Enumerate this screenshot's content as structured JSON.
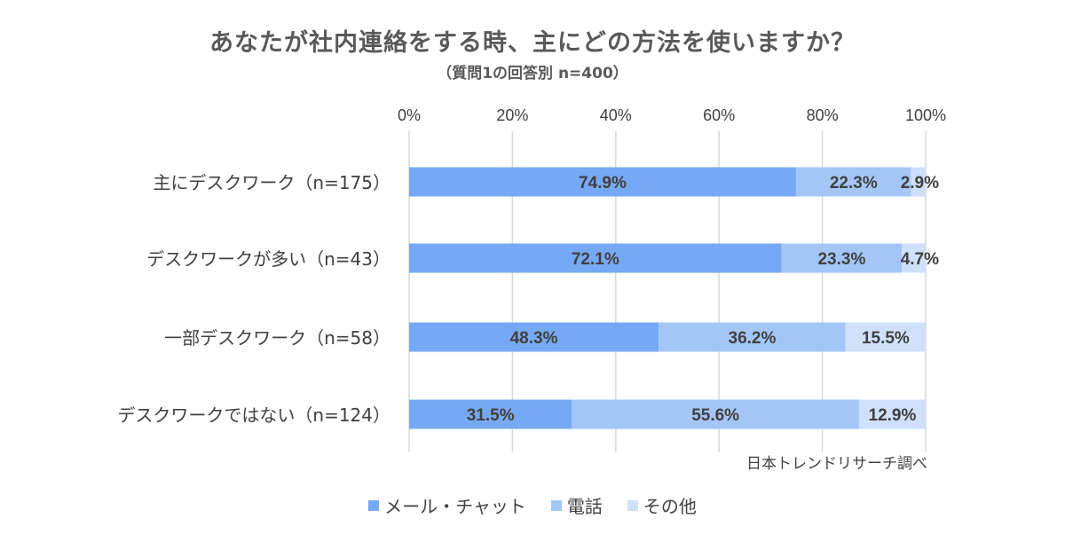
{
  "title": "あなたが社内連絡をする時、主にどの方法を使いますか？",
  "subtitle": "（質問1の回答別 n=400）",
  "source": "日本トレンドリサーチ調べ",
  "colors": {
    "mail_chat": "#76a9f3",
    "phone": "#a4c6f6",
    "other": "#cfe0fa",
    "grid": "#d9d9d9",
    "label": "#404040"
  },
  "chart_data": {
    "type": "bar",
    "orientation": "horizontal",
    "stacked": true,
    "categories": [
      "主にデスクワーク（n=175）",
      "デスクワークが多い（n=43）",
      "一部デスクワーク（n=58）",
      "デスクワークではない（n=124）"
    ],
    "series": [
      {
        "name": "メール・チャット",
        "values": [
          74.9,
          72.1,
          48.3,
          31.5
        ],
        "color": "#76a9f3"
      },
      {
        "name": "電話",
        "values": [
          22.3,
          23.3,
          36.2,
          55.6
        ],
        "color": "#a4c6f6"
      },
      {
        "name": "その他",
        "values": [
          2.9,
          4.7,
          15.5,
          12.9
        ],
        "color": "#cfe0fa"
      }
    ],
    "value_labels": [
      [
        "74.9%",
        "72.1%",
        "48.3%",
        "31.5%"
      ],
      [
        "22.3%",
        "23.3%",
        "36.2%",
        "55.6%"
      ],
      [
        "2.9%",
        "4.7%",
        "15.5%",
        "12.9%"
      ]
    ],
    "xlim": [
      0,
      100
    ],
    "x_ticks": [
      "0%",
      "20%",
      "40%",
      "60%",
      "80%",
      "100%"
    ],
    "x_axis_position": "top",
    "grid": true,
    "legend_position": "bottom"
  }
}
